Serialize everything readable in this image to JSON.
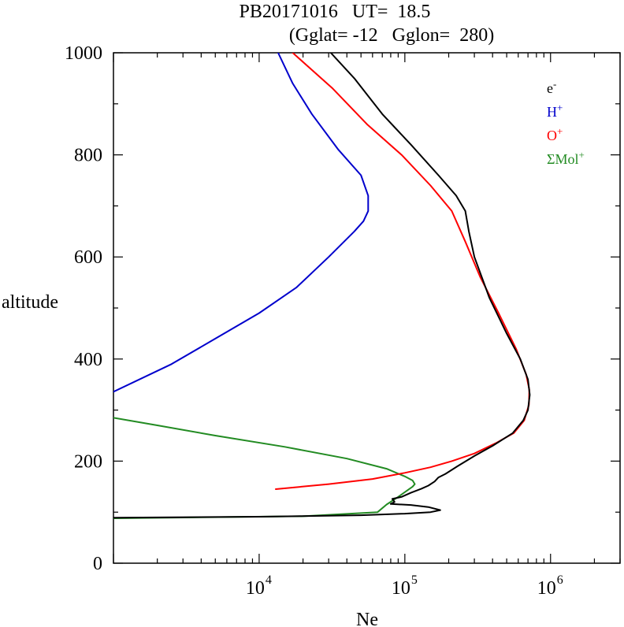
{
  "chart_data": {
    "type": "line",
    "title_line1": "PB20171016   UT=  18.5",
    "title_line2": "(Gglat= -12   Gglon=  280)",
    "xlabel": "Ne",
    "ylabel": "altitude",
    "x_scale": "log",
    "xlim": [
      1000,
      3000000
    ],
    "ylim": [
      0,
      1000
    ],
    "x_ticks": [
      {
        "base": "10",
        "exp": "4",
        "value": 10000
      },
      {
        "base": "10",
        "exp": "5",
        "value": 100000
      },
      {
        "base": "10",
        "exp": "6",
        "value": 1000000
      }
    ],
    "y_ticks": [
      {
        "label": "0",
        "value": 0
      },
      {
        "label": "200",
        "value": 200
      },
      {
        "label": "400",
        "value": 400
      },
      {
        "label": "600",
        "value": 600
      },
      {
        "label": "800",
        "value": 800
      },
      {
        "label": "1000",
        "value": 1000
      }
    ],
    "legend_position": "top-right",
    "series": [
      {
        "key": "electrons",
        "name_base": "e",
        "name_sup": "-",
        "color": "#000000",
        "points": [
          [
            1000,
            89
          ],
          [
            10000,
            91
          ],
          [
            50000,
            94
          ],
          [
            100000,
            97
          ],
          [
            150000,
            100
          ],
          [
            175000,
            104
          ],
          [
            145000,
            110
          ],
          [
            110000,
            114
          ],
          [
            80000,
            116
          ],
          [
            85000,
            120
          ],
          [
            82000,
            126
          ],
          [
            95000,
            130
          ],
          [
            110000,
            138
          ],
          [
            130000,
            146
          ],
          [
            145000,
            152
          ],
          [
            160000,
            160
          ],
          [
            170000,
            168
          ],
          [
            190000,
            175
          ],
          [
            230000,
            190
          ],
          [
            300000,
            210
          ],
          [
            400000,
            230
          ],
          [
            550000,
            255
          ],
          [
            650000,
            280
          ],
          [
            700000,
            300
          ],
          [
            720000,
            330
          ],
          [
            700000,
            360
          ],
          [
            620000,
            400
          ],
          [
            500000,
            450
          ],
          [
            380000,
            520
          ],
          [
            300000,
            600
          ],
          [
            275000,
            650
          ],
          [
            260000,
            690
          ],
          [
            225000,
            720
          ],
          [
            170000,
            760
          ],
          [
            110000,
            820
          ],
          [
            70000,
            880
          ],
          [
            45000,
            950
          ],
          [
            31000,
            1000
          ]
        ]
      },
      {
        "key": "h_plus",
        "name_base": "H",
        "name_sup": "+",
        "color": "#0000cc",
        "points": [
          [
            1000,
            336
          ],
          [
            2500,
            390
          ],
          [
            5000,
            440
          ],
          [
            10000,
            490
          ],
          [
            18000,
            540
          ],
          [
            30000,
            600
          ],
          [
            45000,
            650
          ],
          [
            52000,
            670
          ],
          [
            56000,
            690
          ],
          [
            56000,
            720
          ],
          [
            50000,
            760
          ],
          [
            35000,
            810
          ],
          [
            23000,
            880
          ],
          [
            17000,
            940
          ],
          [
            13500,
            1000
          ]
        ]
      },
      {
        "key": "o_plus",
        "name_base": "O",
        "name_sup": "+",
        "color": "#ff0000",
        "points": [
          [
            13000,
            145
          ],
          [
            30000,
            155
          ],
          [
            60000,
            165
          ],
          [
            100000,
            177
          ],
          [
            150000,
            188
          ],
          [
            210000,
            200
          ],
          [
            300000,
            215
          ],
          [
            420000,
            235
          ],
          [
            560000,
            255
          ],
          [
            660000,
            280
          ],
          [
            710000,
            310
          ],
          [
            715000,
            340
          ],
          [
            680000,
            370
          ],
          [
            580000,
            420
          ],
          [
            440000,
            490
          ],
          [
            330000,
            560
          ],
          [
            260000,
            630
          ],
          [
            210000,
            690
          ],
          [
            150000,
            740
          ],
          [
            95000,
            800
          ],
          [
            55000,
            860
          ],
          [
            32000,
            930
          ],
          [
            17000,
            1000
          ]
        ]
      },
      {
        "key": "mol_plus",
        "name_base": "ΣMol",
        "name_sup": "+",
        "color": "#228b22",
        "points": [
          [
            1000,
            285
          ],
          [
            2000,
            270
          ],
          [
            5000,
            250
          ],
          [
            15000,
            228
          ],
          [
            40000,
            205
          ],
          [
            75000,
            185
          ],
          [
            100000,
            170
          ],
          [
            113000,
            162
          ],
          [
            117000,
            155
          ],
          [
            113000,
            150
          ],
          [
            90000,
            130
          ],
          [
            75000,
            115
          ],
          [
            65000,
            100
          ],
          [
            20000,
            92
          ],
          [
            1000,
            88
          ]
        ]
      }
    ]
  }
}
